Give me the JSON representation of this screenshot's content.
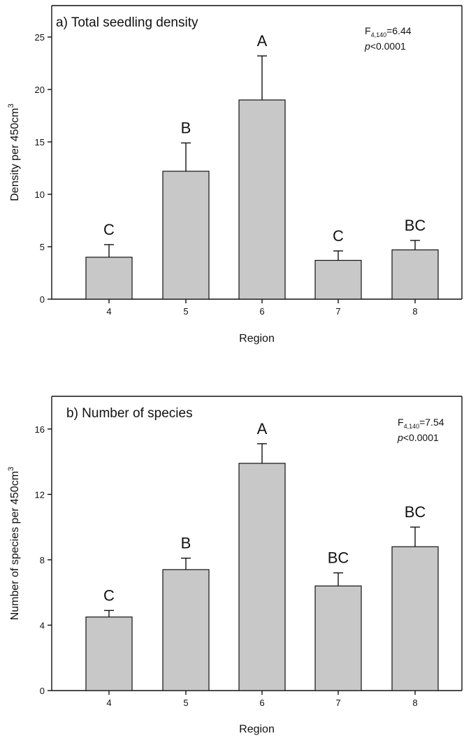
{
  "chart_data": [
    {
      "type": "bar",
      "title": "a) Total seedling density",
      "xlabel": "Region",
      "ylabel_main": "Density per 450cm",
      "ylabel_sup": "3",
      "categories": [
        "4",
        "5",
        "6",
        "7",
        "8"
      ],
      "values": [
        4.0,
        12.2,
        19.0,
        3.7,
        4.7
      ],
      "errors": [
        1.2,
        2.7,
        4.2,
        0.9,
        0.9
      ],
      "letters": [
        "C",
        "B",
        "A",
        "C",
        "BC"
      ],
      "ylim": [
        0,
        28
      ],
      "yticks": [
        0,
        5,
        10,
        15,
        20,
        25
      ],
      "stat_prefix": "F",
      "stat_sub": "4,140",
      "stat_value": "=6.44",
      "p_symbol": "p",
      "p_value": "<0.0001"
    },
    {
      "type": "bar",
      "title": "b) Number of species",
      "xlabel": "Region",
      "ylabel_main": "Number of species per 450cm",
      "ylabel_sup": "3",
      "categories": [
        "4",
        "5",
        "6",
        "7",
        "8"
      ],
      "values": [
        4.5,
        7.4,
        13.9,
        6.4,
        8.8
      ],
      "errors": [
        0.4,
        0.7,
        1.2,
        0.8,
        1.2
      ],
      "letters": [
        "C",
        "B",
        "A",
        "BC",
        "BC"
      ],
      "ylim": [
        0,
        18
      ],
      "yticks": [
        0,
        4,
        8,
        12,
        16
      ],
      "stat_prefix": "F",
      "stat_sub": "4,140",
      "stat_value": "=7.54",
      "p_symbol": "p",
      "p_value": "<0.0001"
    }
  ]
}
